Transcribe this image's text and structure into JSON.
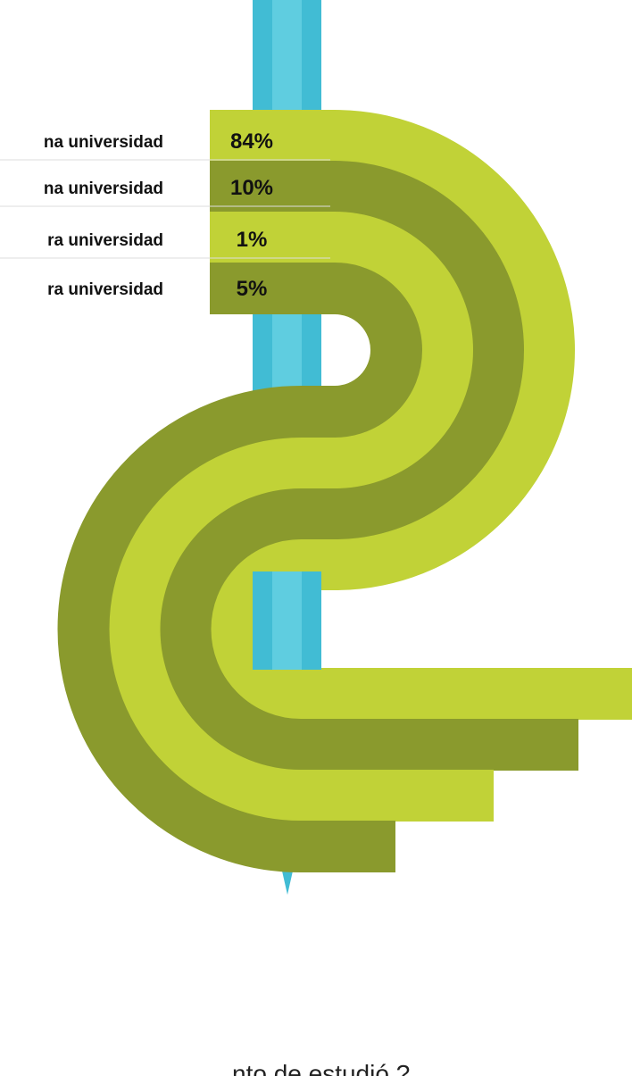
{
  "items": [
    {
      "label": "na universidad",
      "value": "84%"
    },
    {
      "label": "na universidad",
      "value": "10%"
    },
    {
      "label": "ra universidad",
      "value": "1%"
    },
    {
      "label": "ra universidad",
      "value": "5%"
    }
  ],
  "footer": "nto de estudió ?"
}
